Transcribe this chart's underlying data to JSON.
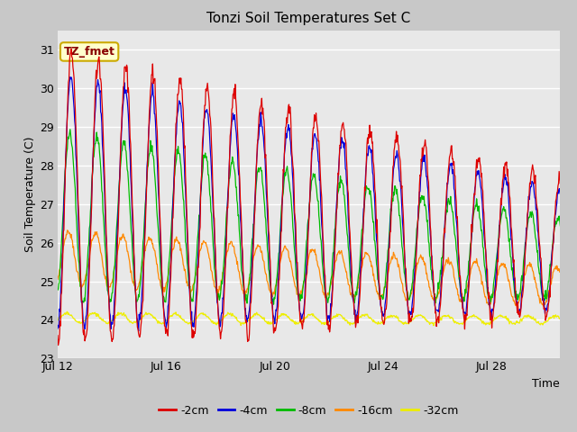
{
  "title": "Tonzi Soil Temperatures Set C",
  "ylabel": "Soil Temperature (C)",
  "xlabel": "Time",
  "annotation": "TZ_fmet",
  "ylim": [
    23.0,
    31.5
  ],
  "yticks": [
    23.0,
    24.0,
    25.0,
    26.0,
    27.0,
    28.0,
    29.0,
    30.0,
    31.0
  ],
  "xtick_labels": [
    "Jul 12",
    "Jul 16",
    "Jul 20",
    "Jul 24",
    "Jul 28"
  ],
  "xtick_positions": [
    0,
    4,
    8,
    12,
    16
  ],
  "xlim": [
    0,
    18.5
  ],
  "colors": {
    "-2cm": "#dd0000",
    "-4cm": "#0000dd",
    "-8cm": "#00bb00",
    "-16cm": "#ff8800",
    "-32cm": "#eeee00"
  },
  "legend_labels": [
    "-2cm",
    "-4cm",
    "-8cm",
    "-16cm",
    "-32cm"
  ],
  "fig_bg": "#c8c8c8",
  "ax_bg": "#e8e8e8",
  "grid_color": "#ffffff",
  "n_days": 19,
  "title_fontsize": 11,
  "axis_fontsize": 9,
  "tick_fontsize": 9
}
